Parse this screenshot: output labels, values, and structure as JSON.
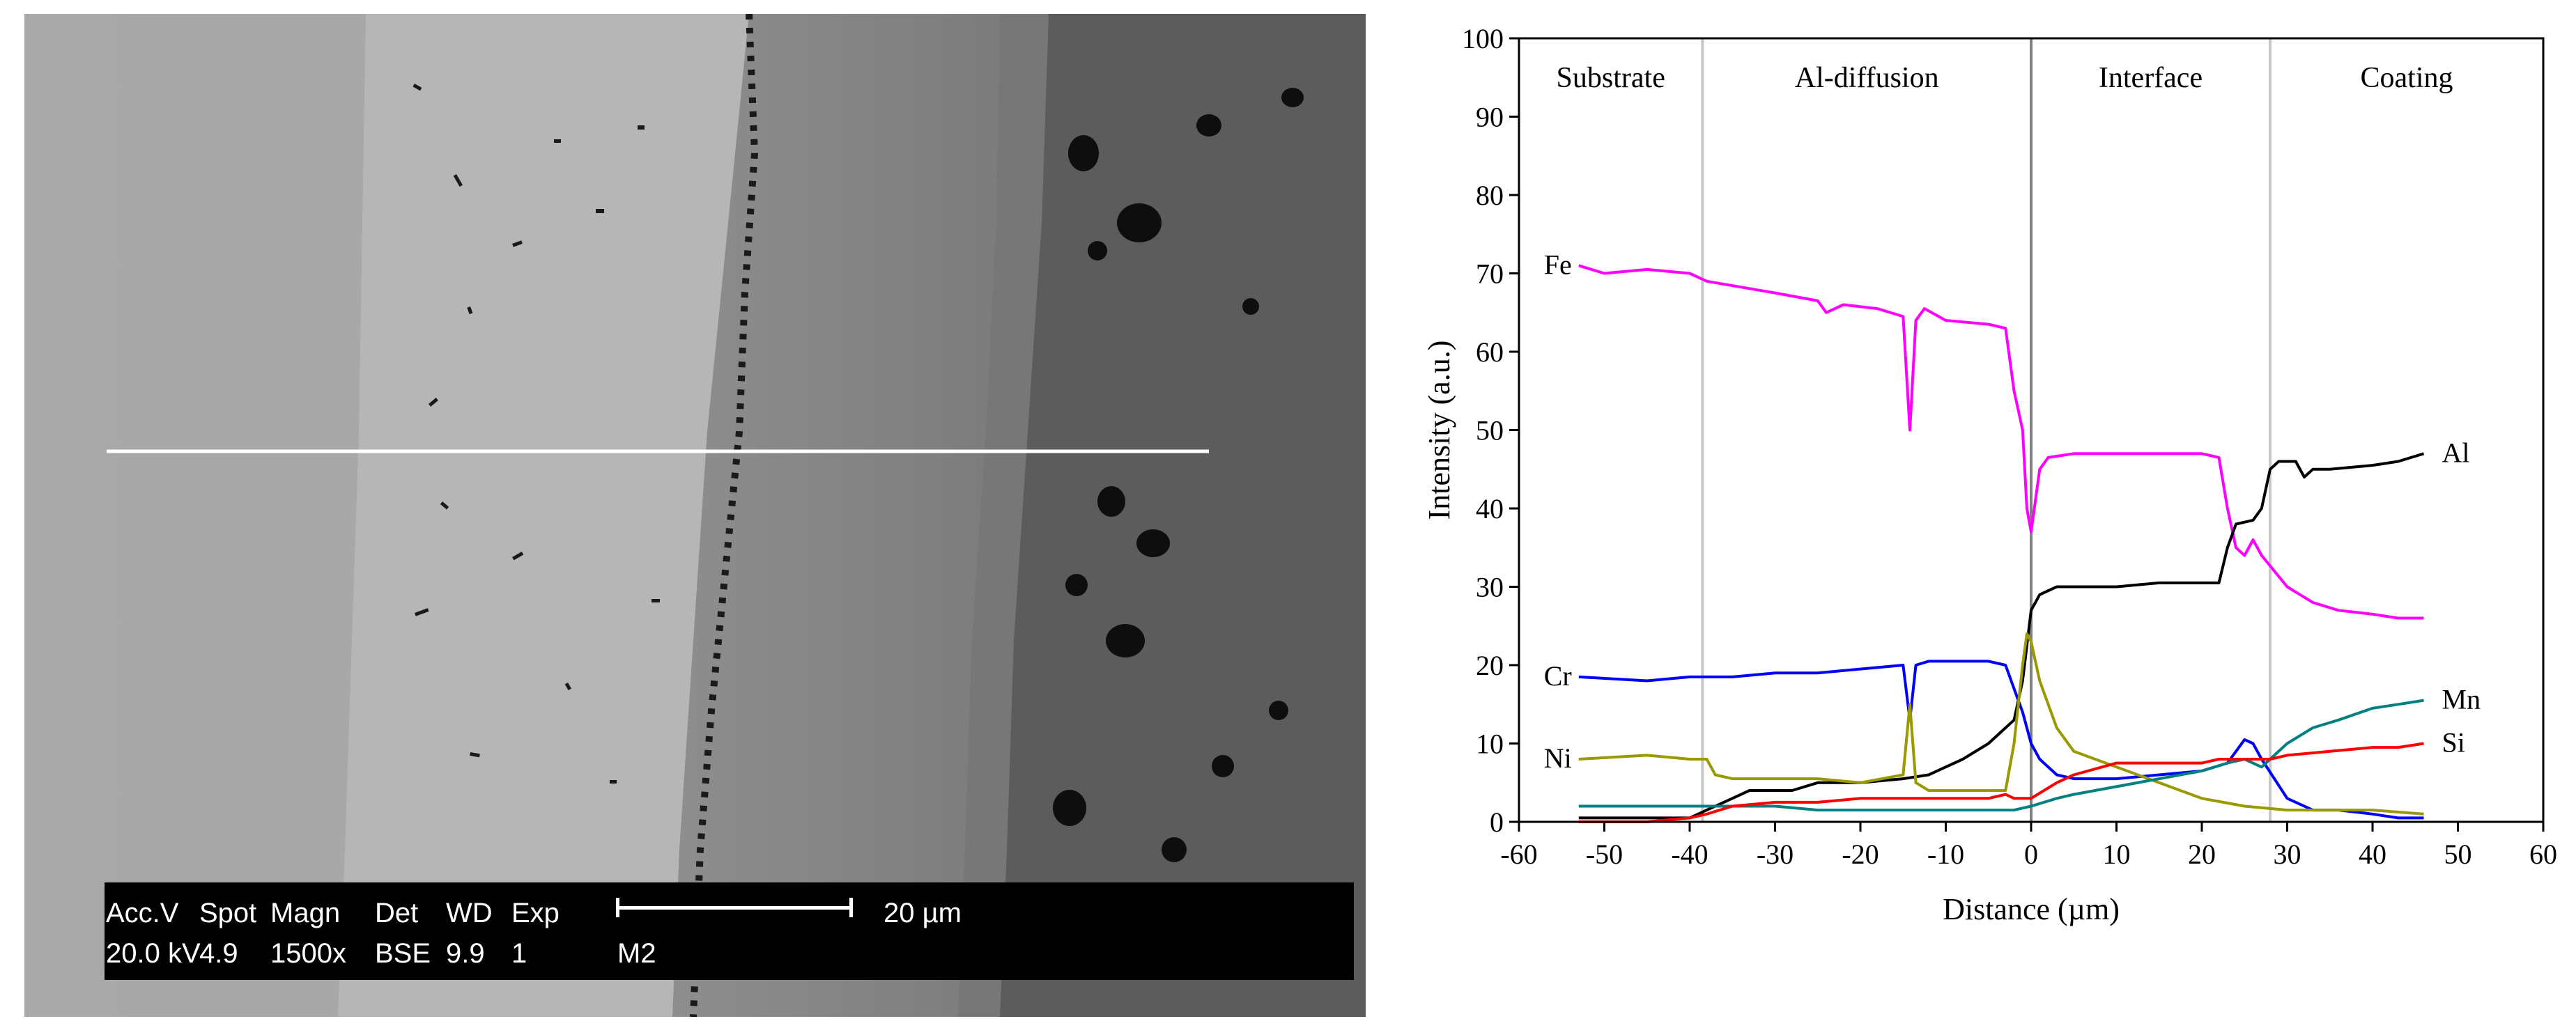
{
  "micrograph": {
    "info": {
      "headers": [
        "Acc.V",
        "Spot",
        "Magn",
        "Det",
        "WD",
        "Exp"
      ],
      "values": [
        "20.0 kV",
        "4.9",
        "1500x",
        "BSE",
        "9.9",
        "1"
      ],
      "sample_id": "M2",
      "scale_label": "20 µm"
    }
  },
  "chart_data": {
    "type": "line",
    "xlabel": "Distance (µm)",
    "ylabel": "Intensity (a.u.)",
    "xlim": [
      -60,
      60
    ],
    "ylim": [
      0,
      100
    ],
    "x_ticks": [
      "-60",
      "-50",
      "-40",
      "-30",
      "-20",
      "-10",
      "0",
      "10",
      "20",
      "30",
      "40",
      "50",
      "60"
    ],
    "y_ticks": [
      "0",
      "10",
      "20",
      "30",
      "40",
      "50",
      "60",
      "70",
      "80",
      "90",
      "100"
    ],
    "grid": false,
    "regions": [
      {
        "label": "Substrate",
        "x_from": -60,
        "x_to": -38.5
      },
      {
        "label": "Al-diffusion",
        "x_from": -38.5,
        "x_to": 0
      },
      {
        "label": "Interface",
        "x_from": 0,
        "x_to": 28
      },
      {
        "label": "Coating",
        "x_from": 28,
        "x_to": 60
      }
    ],
    "boundaries": [
      {
        "x": -38.5,
        "color": "#c8c8c8"
      },
      {
        "x": 0,
        "color": "#808080"
      },
      {
        "x": 28,
        "color": "#c8c8c8"
      }
    ],
    "series": [
      {
        "name": "Fe",
        "color": "#ff00ff",
        "label_side": "left",
        "points": [
          [
            -53,
            71
          ],
          [
            -50,
            70
          ],
          [
            -45,
            70.5
          ],
          [
            -40,
            70
          ],
          [
            -38,
            69
          ],
          [
            -30,
            67.5
          ],
          [
            -25,
            66.5
          ],
          [
            -24,
            65
          ],
          [
            -22,
            66
          ],
          [
            -18,
            65.5
          ],
          [
            -15,
            64.5
          ],
          [
            -14.2,
            50
          ],
          [
            -13.5,
            64
          ],
          [
            -12.5,
            65.5
          ],
          [
            -10,
            64
          ],
          [
            -5,
            63.5
          ],
          [
            -3,
            63
          ],
          [
            -2,
            55
          ],
          [
            -1,
            50
          ],
          [
            -0.5,
            40
          ],
          [
            0,
            37
          ],
          [
            1,
            45
          ],
          [
            2,
            46.5
          ],
          [
            5,
            47
          ],
          [
            10,
            47
          ],
          [
            15,
            47
          ],
          [
            20,
            47
          ],
          [
            22,
            46.5
          ],
          [
            23,
            40
          ],
          [
            24,
            35
          ],
          [
            25,
            34
          ],
          [
            26,
            36
          ],
          [
            27,
            34
          ],
          [
            30,
            30
          ],
          [
            33,
            28
          ],
          [
            36,
            27
          ],
          [
            40,
            26.5
          ],
          [
            43,
            26
          ],
          [
            46,
            26
          ]
        ]
      },
      {
        "name": "Al",
        "color": "#000000",
        "label_side": "right",
        "points": [
          [
            -53,
            0.5
          ],
          [
            -45,
            0.5
          ],
          [
            -40,
            0.5
          ],
          [
            -38,
            1.5
          ],
          [
            -35,
            3
          ],
          [
            -33,
            4
          ],
          [
            -30,
            4
          ],
          [
            -28,
            4
          ],
          [
            -25,
            5
          ],
          [
            -20,
            5
          ],
          [
            -15,
            5.5
          ],
          [
            -12,
            6
          ],
          [
            -8,
            8
          ],
          [
            -5,
            10
          ],
          [
            -3,
            12
          ],
          [
            -2,
            13
          ],
          [
            -1,
            18
          ],
          [
            0,
            27
          ],
          [
            1,
            29
          ],
          [
            3,
            30
          ],
          [
            10,
            30
          ],
          [
            15,
            30.5
          ],
          [
            20,
            30.5
          ],
          [
            22,
            30.5
          ],
          [
            23,
            35
          ],
          [
            24,
            38
          ],
          [
            26,
            38.5
          ],
          [
            27,
            40
          ],
          [
            28,
            45
          ],
          [
            29,
            46
          ],
          [
            31,
            46
          ],
          [
            32,
            44
          ],
          [
            33,
            45
          ],
          [
            35,
            45
          ],
          [
            40,
            45.5
          ],
          [
            43,
            46
          ],
          [
            46,
            47
          ]
        ]
      },
      {
        "name": "Cr",
        "color": "#0000ff",
        "label_side": "left",
        "points": [
          [
            -53,
            18.5
          ],
          [
            -45,
            18
          ],
          [
            -40,
            18.5
          ],
          [
            -35,
            18.5
          ],
          [
            -30,
            19
          ],
          [
            -25,
            19
          ],
          [
            -20,
            19.5
          ],
          [
            -15,
            20
          ],
          [
            -14.2,
            13
          ],
          [
            -13.5,
            20
          ],
          [
            -12,
            20.5
          ],
          [
            -8,
            20.5
          ],
          [
            -5,
            20.5
          ],
          [
            -3,
            20
          ],
          [
            -2,
            17
          ],
          [
            -1,
            14
          ],
          [
            0,
            10
          ],
          [
            1,
            8
          ],
          [
            3,
            6
          ],
          [
            5,
            5.5
          ],
          [
            10,
            5.5
          ],
          [
            15,
            6
          ],
          [
            20,
            6.5
          ],
          [
            23,
            7.5
          ],
          [
            25,
            10.5
          ],
          [
            26,
            10
          ],
          [
            27,
            8
          ],
          [
            30,
            3
          ],
          [
            33,
            1.5
          ],
          [
            36,
            1.5
          ],
          [
            40,
            1
          ],
          [
            43,
            0.5
          ],
          [
            46,
            0.5
          ]
        ]
      },
      {
        "name": "Ni",
        "color": "#999900",
        "label_side": "left",
        "points": [
          [
            -53,
            8
          ],
          [
            -45,
            8.5
          ],
          [
            -40,
            8
          ],
          [
            -38,
            8
          ],
          [
            -37,
            6
          ],
          [
            -35,
            5.5
          ],
          [
            -30,
            5.5
          ],
          [
            -25,
            5.5
          ],
          [
            -20,
            5
          ],
          [
            -15,
            6
          ],
          [
            -14.2,
            15
          ],
          [
            -13.5,
            5
          ],
          [
            -12,
            4
          ],
          [
            -8,
            4
          ],
          [
            -5,
            4
          ],
          [
            -3,
            4
          ],
          [
            -2,
            10
          ],
          [
            -1,
            20
          ],
          [
            -0.5,
            24
          ],
          [
            0,
            23
          ],
          [
            1,
            18
          ],
          [
            3,
            12
          ],
          [
            5,
            9
          ],
          [
            10,
            7
          ],
          [
            15,
            5
          ],
          [
            20,
            3
          ],
          [
            25,
            2
          ],
          [
            30,
            1.5
          ],
          [
            35,
            1.5
          ],
          [
            40,
            1.5
          ],
          [
            46,
            1
          ]
        ]
      },
      {
        "name": "Mn",
        "color": "#008080",
        "label_side": "right",
        "points": [
          [
            -53,
            2
          ],
          [
            -45,
            2
          ],
          [
            -40,
            2
          ],
          [
            -30,
            2
          ],
          [
            -25,
            1.5
          ],
          [
            -20,
            1.5
          ],
          [
            -15,
            1.5
          ],
          [
            -10,
            1.5
          ],
          [
            -5,
            1.5
          ],
          [
            -2,
            1.5
          ],
          [
            0,
            2
          ],
          [
            3,
            3
          ],
          [
            5,
            3.5
          ],
          [
            10,
            4.5
          ],
          [
            15,
            5.5
          ],
          [
            20,
            6.5
          ],
          [
            23,
            7.5
          ],
          [
            25,
            8
          ],
          [
            27,
            7
          ],
          [
            28,
            8
          ],
          [
            30,
            10
          ],
          [
            33,
            12
          ],
          [
            36,
            13
          ],
          [
            40,
            14.5
          ],
          [
            43,
            15
          ],
          [
            46,
            15.5
          ]
        ]
      },
      {
        "name": "Si",
        "color": "#ff0000",
        "label_side": "right",
        "points": [
          [
            -53,
            0
          ],
          [
            -45,
            0
          ],
          [
            -40,
            0.5
          ],
          [
            -38,
            1
          ],
          [
            -35,
            2
          ],
          [
            -30,
            2.5
          ],
          [
            -25,
            2.5
          ],
          [
            -20,
            3
          ],
          [
            -15,
            3
          ],
          [
            -10,
            3
          ],
          [
            -5,
            3
          ],
          [
            -3,
            3.5
          ],
          [
            -2,
            3
          ],
          [
            0,
            3
          ],
          [
            3,
            5
          ],
          [
            5,
            6
          ],
          [
            10,
            7.5
          ],
          [
            15,
            7.5
          ],
          [
            20,
            7.5
          ],
          [
            22,
            8
          ],
          [
            25,
            8
          ],
          [
            28,
            8
          ],
          [
            30,
            8.5
          ],
          [
            35,
            9
          ],
          [
            40,
            9.5
          ],
          [
            43,
            9.5
          ],
          [
            46,
            10
          ]
        ]
      }
    ]
  }
}
